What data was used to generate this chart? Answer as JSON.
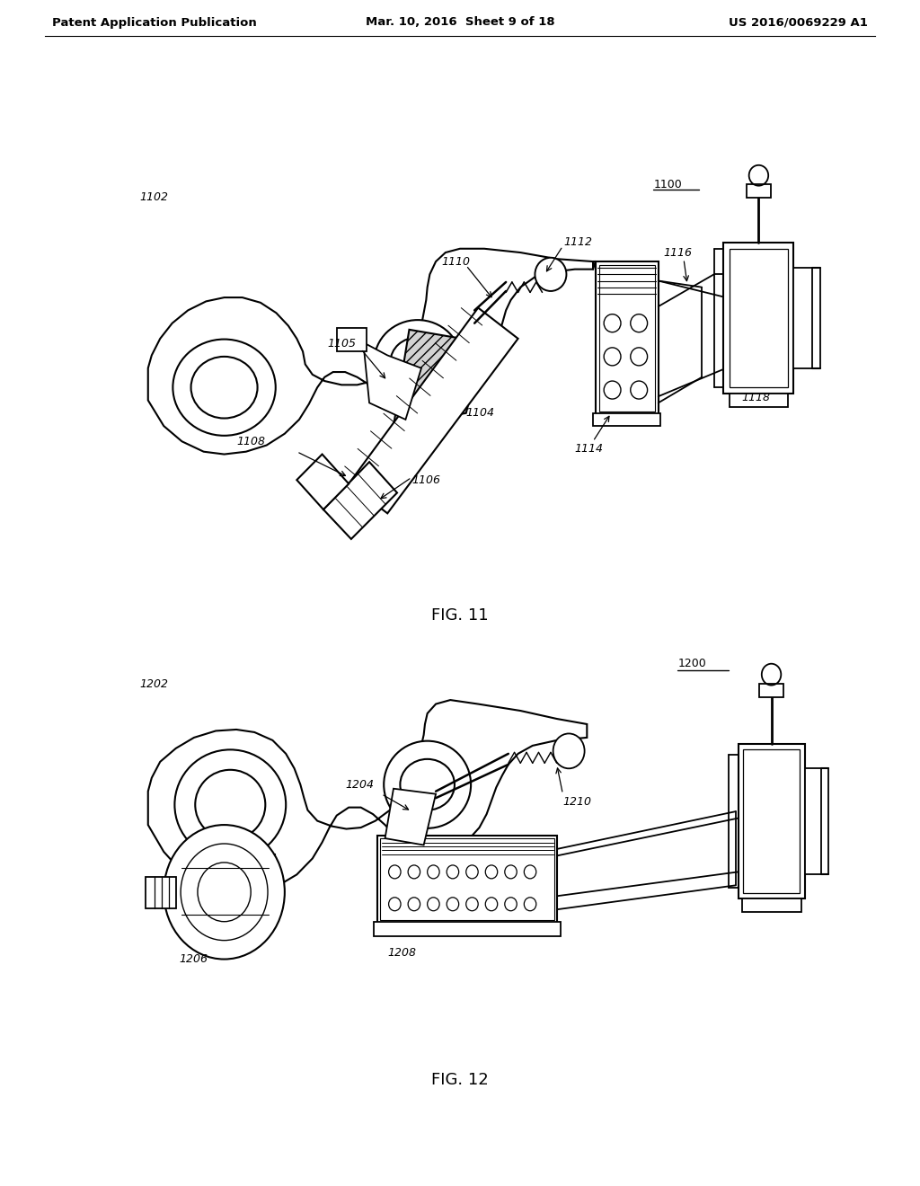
{
  "background_color": "#ffffff",
  "page_width": 10.24,
  "page_height": 13.2,
  "header_left": "Patent Application Publication",
  "header_center": "Mar. 10, 2016  Sheet 9 of 18",
  "header_right": "US 2016/0069229 A1",
  "fig11_caption": "FIG. 11",
  "fig12_caption": "FIG. 12"
}
